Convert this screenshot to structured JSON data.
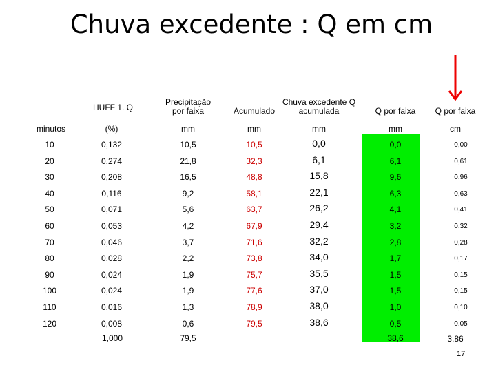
{
  "title": "Chuva excedente : Q em cm",
  "headers": [
    "HUFF 1. Q",
    "Precipitação\nporfaixa",
    "Acumulado",
    "Chuva excedente Q\nacumulada",
    "Q por faixa",
    "Q por faixa"
  ],
  "units": [
    "minutos",
    "(%)",
    "mm",
    "mm",
    "mm",
    "mm",
    "cm"
  ],
  "rows": [
    [
      "10",
      "0,132",
      "10,5",
      "10,5",
      "0,0",
      "0,0",
      "0,00"
    ],
    [
      "20",
      "0,274",
      "21,8",
      "32,3",
      "6,1",
      "6,1",
      "0,61"
    ],
    [
      "30",
      "0,208",
      "16,5",
      "48,8",
      "15,8",
      "9,6",
      "0,96"
    ],
    [
      "40",
      "0,116",
      "9,2",
      "58,1",
      "22,1",
      "6,3",
      "0,63"
    ],
    [
      "50",
      "0,071",
      "5,6",
      "63,7",
      "26,2",
      "4,1",
      "0,41"
    ],
    [
      "60",
      "0,053",
      "4,2",
      "67,9",
      "29,4",
      "3,2",
      "0,32"
    ],
    [
      "70",
      "0,046",
      "3,7",
      "71,6",
      "32,2",
      "2,8",
      "0,28"
    ],
    [
      "80",
      "0,028",
      "2,2",
      "73,8",
      "34,0",
      "1,7",
      "0,17"
    ],
    [
      "90",
      "0,024",
      "1,9",
      "75,7",
      "35,5",
      "1,5",
      "0,15"
    ],
    [
      "100",
      "0,024",
      "1,9",
      "77,6",
      "37,0",
      "1,5",
      "0,15"
    ],
    [
      "110",
      "0,016",
      "1,3",
      "78,9",
      "38,0",
      "1,0",
      "0,10"
    ],
    [
      "120",
      "0,008",
      "0,6",
      "79,5",
      "38,6",
      "0,5",
      "0,05"
    ]
  ],
  "totals": {
    "huff": "1,000",
    "precip": "79,5",
    "q_mm": "38,6",
    "q_cm": "3,86"
  },
  "page_number": "17",
  "colors": {
    "highlight": "#00ee00",
    "accumulated_text": "#cc0000",
    "arrow": "#ee0000"
  }
}
